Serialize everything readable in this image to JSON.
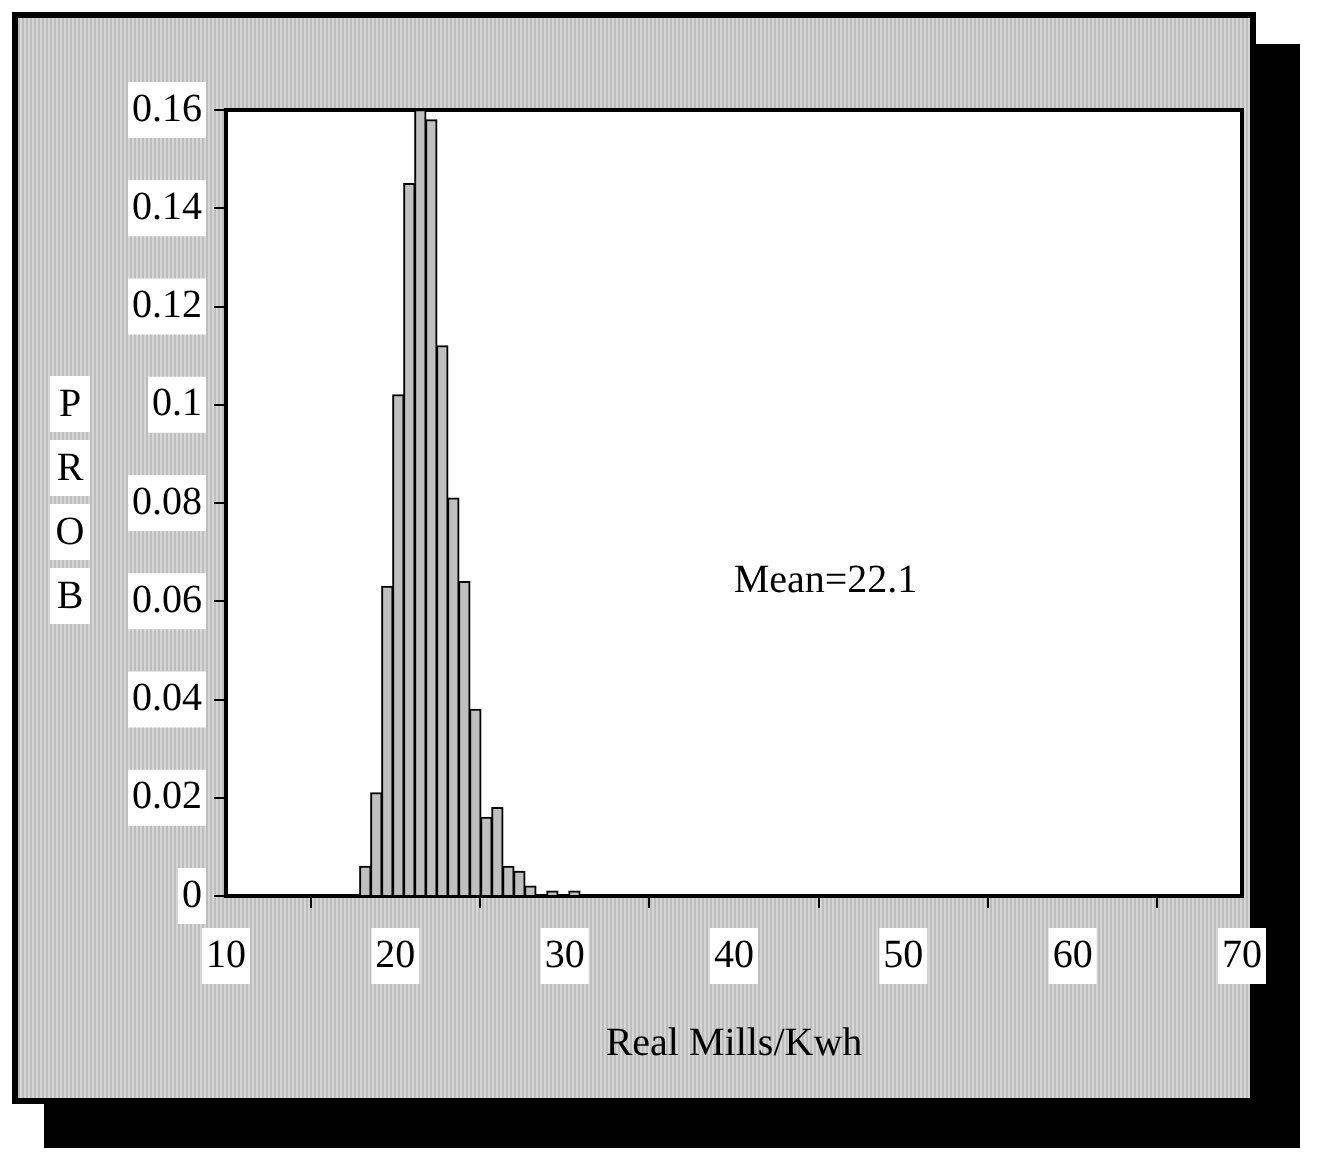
{
  "chart_data": {
    "type": "histogram",
    "xlabel": "Real Mills/Kwh",
    "ylabel": "PROB",
    "bins": [
      17.9,
      18.55,
      19.2,
      19.85,
      20.5,
      21.15,
      21.8,
      22.45,
      23.1,
      23.75,
      24.4,
      25.05,
      25.7,
      26.35,
      27.0,
      27.65,
      28.3,
      28.95,
      29.6,
      30.25,
      30.9
    ],
    "values": [
      0.006,
      0.021,
      0.063,
      0.102,
      0.145,
      0.16,
      0.158,
      0.112,
      0.081,
      0.064,
      0.038,
      0.016,
      0.018,
      0.006,
      0.005,
      0.002,
      0,
      0.001,
      0,
      0.001
    ],
    "color": "#c0c0c0",
    "xlim": [
      10,
      70
    ],
    "xticks": [
      10,
      20,
      30,
      40,
      50,
      60,
      70
    ],
    "ylim": [
      0,
      0.16
    ],
    "yticks": [
      0,
      0.02,
      0.04,
      0.06,
      0.08,
      0.1,
      0.12,
      0.14,
      0.16
    ],
    "grid": false,
    "legend": false,
    "annotations": [
      "Mean=22.1"
    ]
  }
}
